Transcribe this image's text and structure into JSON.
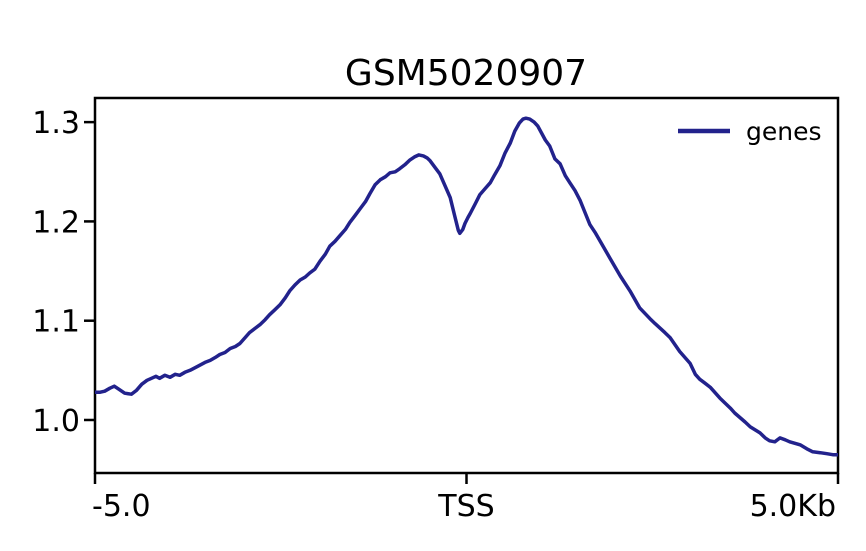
{
  "chart_data": {
    "type": "line",
    "title": "GSM5020907",
    "xlabel": "",
    "ylabel": "",
    "x_unit": "Kb",
    "reference_point_label": "TSS",
    "xlim": [
      -5,
      5
    ],
    "ylim": [
      0.9466,
      1.3243
    ],
    "grid": false,
    "xticks": {
      "values": [
        -5,
        0,
        5
      ],
      "labels": [
        "-5.0",
        "TSS",
        "5.0Kb"
      ],
      "anchors": [
        "start",
        "middle",
        "end"
      ]
    },
    "yticks": {
      "values": [
        1.0,
        1.1,
        1.2,
        1.3
      ],
      "labels": [
        "1.0",
        "1.1",
        "1.2",
        "1.3"
      ]
    },
    "legend": {
      "position": "upper-right",
      "entries": [
        "genes"
      ]
    },
    "series": [
      {
        "name": "genes",
        "color": "#22228c",
        "x": [
          -5.0,
          -4.93,
          -4.87,
          -4.8,
          -4.74,
          -4.68,
          -4.6,
          -4.51,
          -4.44,
          -4.37,
          -4.3,
          -4.24,
          -4.18,
          -4.13,
          -4.06,
          -3.99,
          -3.92,
          -3.86,
          -3.79,
          -3.72,
          -3.62,
          -3.52,
          -3.45,
          -3.38,
          -3.32,
          -3.25,
          -3.18,
          -3.11,
          -3.05,
          -2.98,
          -2.92,
          -2.85,
          -2.78,
          -2.71,
          -2.65,
          -2.58,
          -2.51,
          -2.44,
          -2.38,
          -2.31,
          -2.24,
          -2.17,
          -2.11,
          -2.04,
          -1.97,
          -1.9,
          -1.84,
          -1.77,
          -1.7,
          -1.63,
          -1.57,
          -1.5,
          -1.43,
          -1.36,
          -1.3,
          -1.23,
          -1.16,
          -1.09,
          -1.03,
          -0.96,
          -0.9,
          -0.83,
          -0.76,
          -0.7,
          -0.64,
          -0.58,
          -0.53,
          -0.49,
          -0.42,
          -0.36,
          -0.29,
          -0.22,
          -0.16,
          -0.11,
          -0.09,
          -0.05,
          -0.02,
          0.02,
          0.05,
          0.12,
          0.18,
          0.25,
          0.32,
          0.38,
          0.45,
          0.52,
          0.59,
          0.65,
          0.71,
          0.76,
          0.8,
          0.85,
          0.91,
          0.96,
          1.06,
          1.12,
          1.19,
          1.26,
          1.33,
          1.39,
          1.46,
          1.53,
          1.6,
          1.66,
          1.73,
          1.8,
          1.93,
          2.07,
          2.2,
          2.33,
          2.47,
          2.54,
          2.67,
          2.74,
          2.87,
          3.01,
          3.08,
          3.14,
          3.21,
          3.28,
          3.41,
          3.55,
          3.61,
          3.75,
          3.82,
          3.95,
          4.02,
          4.08,
          4.15,
          4.22,
          4.29,
          4.35,
          4.49,
          4.58,
          4.66,
          4.76,
          4.85,
          4.93,
          5.0
        ],
        "y": [
          1.028,
          1.028,
          1.029,
          1.032,
          1.034,
          1.031,
          1.027,
          1.026,
          1.03,
          1.036,
          1.04,
          1.042,
          1.044,
          1.042,
          1.045,
          1.043,
          1.046,
          1.045,
          1.048,
          1.05,
          1.054,
          1.058,
          1.06,
          1.063,
          1.066,
          1.068,
          1.072,
          1.074,
          1.077,
          1.083,
          1.088,
          1.092,
          1.096,
          1.101,
          1.106,
          1.111,
          1.116,
          1.123,
          1.13,
          1.136,
          1.141,
          1.144,
          1.148,
          1.152,
          1.16,
          1.167,
          1.175,
          1.18,
          1.186,
          1.192,
          1.199,
          1.206,
          1.213,
          1.22,
          1.228,
          1.237,
          1.242,
          1.245,
          1.249,
          1.25,
          1.253,
          1.257,
          1.262,
          1.265,
          1.267,
          1.266,
          1.264,
          1.261,
          1.254,
          1.248,
          1.236,
          1.224,
          1.206,
          1.191,
          1.188,
          1.192,
          1.198,
          1.204,
          1.208,
          1.218,
          1.227,
          1.233,
          1.239,
          1.247,
          1.256,
          1.269,
          1.279,
          1.291,
          1.299,
          1.303,
          1.304,
          1.303,
          1.3,
          1.296,
          1.282,
          1.276,
          1.263,
          1.258,
          1.246,
          1.239,
          1.231,
          1.221,
          1.208,
          1.197,
          1.189,
          1.18,
          1.163,
          1.145,
          1.13,
          1.113,
          1.102,
          1.097,
          1.088,
          1.083,
          1.069,
          1.057,
          1.046,
          1.041,
          1.037,
          1.033,
          1.022,
          1.012,
          1.007,
          0.998,
          0.993,
          0.987,
          0.982,
          0.979,
          0.978,
          0.982,
          0.98,
          0.978,
          0.975,
          0.971,
          0.968,
          0.967,
          0.966,
          0.965,
          0.965
        ]
      }
    ]
  }
}
